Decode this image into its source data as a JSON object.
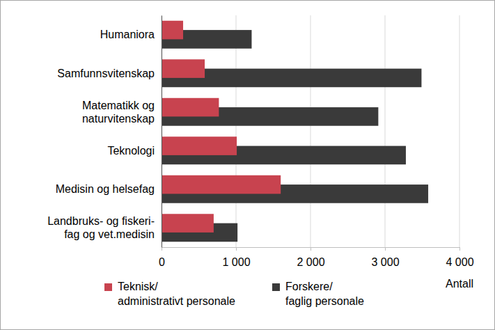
{
  "chart_data": {
    "type": "bar",
    "orientation": "horizontal",
    "categories": [
      "Humaniora",
      "Samfunnsvitenskap",
      "Matematikk og\nnaturvitenskap",
      "Teknologi",
      "Medisin og helsefag",
      "Landbruks- og fiskeri-\nfag og vet.medisin"
    ],
    "series": [
      {
        "name": "Teknisk/\nadministrativt personale",
        "color": "#c8434f",
        "values": [
          290,
          580,
          770,
          1010,
          1600,
          700
        ]
      },
      {
        "name": "Forskere/\nfaglig personale",
        "color": "#3a3a3a",
        "values": [
          1210,
          3490,
          2910,
          3280,
          3580,
          1020
        ]
      }
    ],
    "xlabel": "Antall",
    "xlim": [
      0,
      4000
    ],
    "xticks": [
      0,
      {
        "value": 1000,
        "label": "1 000"
      },
      {
        "value": 2000,
        "label": "2 000"
      },
      {
        "value": 3000,
        "label": "3 000"
      },
      {
        "value": 4000,
        "label": "4 000"
      }
    ],
    "grid": true,
    "legend": "bottom"
  }
}
